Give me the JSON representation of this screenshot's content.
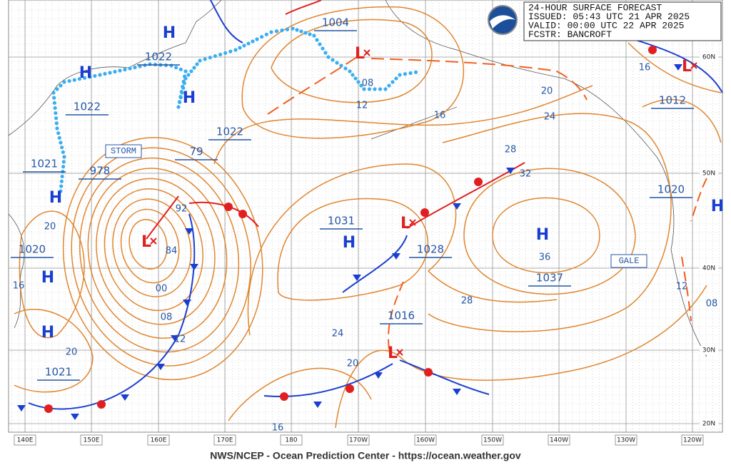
{
  "header": {
    "lines": [
      "24-HOUR SURFACE FORECAST",
      "ISSUED: 05:43 UTC 21 APR 2025",
      "VALID:  00:00 UTC 22 APR 2025",
      "FCSTR:  BANCROFT"
    ]
  },
  "footer": "NWS/NCEP - Ocean Prediction Center - https://ocean.weather.gov",
  "longitude_labels": [
    "140E",
    "150E",
    "160E",
    "170E",
    "180",
    "170W",
    "160W",
    "150W",
    "140W",
    "130W",
    "120W"
  ],
  "latitude_labels": [
    "60N",
    "50N",
    "40N",
    "30N",
    "20N"
  ],
  "high_symbol": "H",
  "low_symbol": "L",
  "pressure_labels": [
    "1004",
    "1022",
    "1022",
    "1022",
    "1021",
    "978",
    "79",
    "1031",
    "1028",
    "1037",
    "1016",
    "1020",
    "1020",
    "1021",
    "1012"
  ],
  "isobar_labels": [
    "08",
    "12",
    "16",
    "20",
    "24",
    "28",
    "32",
    "36",
    "28",
    "24",
    "20",
    "16",
    "92",
    "84",
    "00",
    "08",
    "12",
    "20",
    "16",
    "20",
    "16",
    "12",
    "08"
  ],
  "warnings": [
    "STORM",
    "GALE"
  ]
}
